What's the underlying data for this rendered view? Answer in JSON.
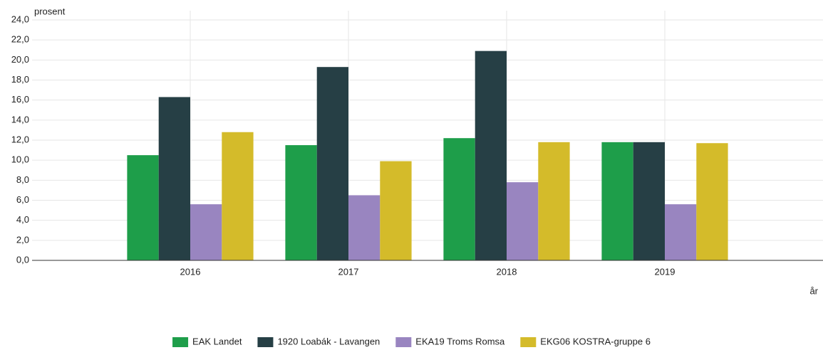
{
  "chart_data": {
    "type": "bar",
    "y_label": "prosent",
    "x_label": "år",
    "categories": [
      "2016",
      "2017",
      "2018",
      "2019"
    ],
    "series": [
      {
        "name": "EAK Landet",
        "color": "#1e9e4a",
        "values": [
          10.5,
          11.5,
          12.2,
          11.8
        ]
      },
      {
        "name": "1920 Loabák - Lavangen",
        "color": "#263f45",
        "values": [
          16.3,
          19.3,
          20.9,
          11.8
        ]
      },
      {
        "name": "EKA19 Troms Romsa",
        "color": "#9985c0",
        "values": [
          5.6,
          6.5,
          7.8,
          5.6
        ]
      },
      {
        "name": "EKG06 KOSTRA-gruppe 6",
        "color": "#d4bb2a",
        "values": [
          12.8,
          9.9,
          11.8,
          11.7
        ]
      }
    ],
    "ylim": [
      0,
      24
    ],
    "yticks": [
      {
        "value": 0,
        "label": "0,0"
      },
      {
        "value": 2,
        "label": "2,0"
      },
      {
        "value": 4,
        "label": "4,0"
      },
      {
        "value": 6,
        "label": "6,0"
      },
      {
        "value": 8,
        "label": "8,0"
      },
      {
        "value": 10,
        "label": "10,0"
      },
      {
        "value": 12,
        "label": "12,0"
      },
      {
        "value": 14,
        "label": "14,0"
      },
      {
        "value": 16,
        "label": "16,0"
      },
      {
        "value": 18,
        "label": "18,0"
      },
      {
        "value": 20,
        "label": "20,0"
      },
      {
        "value": 22,
        "label": "22,0"
      },
      {
        "value": 24,
        "label": "24,0"
      }
    ],
    "grid": true,
    "legend": "bottom"
  }
}
